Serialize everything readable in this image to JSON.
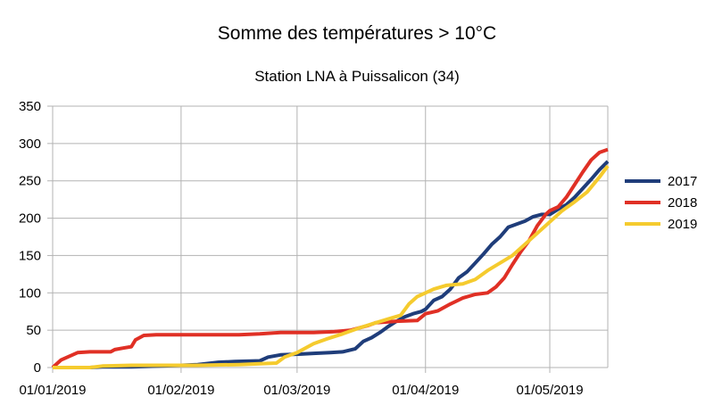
{
  "chart_data": {
    "type": "line",
    "title": "Somme des températures > 10°C",
    "subtitle": "Station LNA à Puissalicon (34)",
    "xlabel": "",
    "ylabel": "",
    "xlim": [
      "2019-01-01",
      "2019-05-15"
    ],
    "ylim": [
      0,
      350
    ],
    "y_ticks": [
      "0",
      "50",
      "100",
      "150",
      "200",
      "250",
      "300",
      "350"
    ],
    "x_ticks": [
      {
        "date": "2019-01-01",
        "label": "01/01/2019"
      },
      {
        "date": "2019-02-01",
        "label": "01/02/2019"
      },
      {
        "date": "2019-03-01",
        "label": "01/03/2019"
      },
      {
        "date": "2019-04-01",
        "label": "01/04/2019"
      },
      {
        "date": "2019-05-01",
        "label": "01/05/2019"
      }
    ],
    "grid": {
      "horizontal": true,
      "vertical": true
    },
    "legend_position": "right",
    "series": [
      {
        "name": "2017",
        "color": "#1f3d7a",
        "points": [
          [
            "2019-01-01",
            0
          ],
          [
            "2019-01-05",
            0
          ],
          [
            "2019-01-10",
            0
          ],
          [
            "2019-01-13",
            1
          ],
          [
            "2019-01-20",
            1
          ],
          [
            "2019-01-27",
            2
          ],
          [
            "2019-02-01",
            3
          ],
          [
            "2019-02-05",
            4
          ],
          [
            "2019-02-10",
            7
          ],
          [
            "2019-02-14",
            8
          ],
          [
            "2019-02-20",
            9
          ],
          [
            "2019-02-22",
            14
          ],
          [
            "2019-02-25",
            17
          ],
          [
            "2019-03-02",
            18
          ],
          [
            "2019-03-05",
            19
          ],
          [
            "2019-03-09",
            20
          ],
          [
            "2019-03-12",
            21
          ],
          [
            "2019-03-15",
            25
          ],
          [
            "2019-03-17",
            35
          ],
          [
            "2019-03-19",
            40
          ],
          [
            "2019-03-21",
            47
          ],
          [
            "2019-03-23",
            55
          ],
          [
            "2019-03-25",
            62
          ],
          [
            "2019-03-27",
            68
          ],
          [
            "2019-03-29",
            72
          ],
          [
            "2019-03-31",
            75
          ],
          [
            "2019-04-01",
            78
          ],
          [
            "2019-04-03",
            90
          ],
          [
            "2019-04-05",
            95
          ],
          [
            "2019-04-07",
            105
          ],
          [
            "2019-04-09",
            120
          ],
          [
            "2019-04-11",
            128
          ],
          [
            "2019-04-13",
            140
          ],
          [
            "2019-04-15",
            152
          ],
          [
            "2019-04-17",
            165
          ],
          [
            "2019-04-19",
            175
          ],
          [
            "2019-04-21",
            188
          ],
          [
            "2019-04-23",
            192
          ],
          [
            "2019-04-25",
            196
          ],
          [
            "2019-04-27",
            202
          ],
          [
            "2019-04-29",
            205
          ],
          [
            "2019-05-01",
            205
          ],
          [
            "2019-05-03",
            212
          ],
          [
            "2019-05-05",
            218
          ],
          [
            "2019-05-07",
            228
          ],
          [
            "2019-05-09",
            240
          ],
          [
            "2019-05-11",
            252
          ],
          [
            "2019-05-13",
            265
          ],
          [
            "2019-05-15",
            276
          ]
        ]
      },
      {
        "name": "2018",
        "color": "#e03025",
        "points": [
          [
            "2019-01-01",
            0
          ],
          [
            "2019-01-03",
            10
          ],
          [
            "2019-01-05",
            15
          ],
          [
            "2019-01-07",
            20
          ],
          [
            "2019-01-10",
            21
          ],
          [
            "2019-01-15",
            21
          ],
          [
            "2019-01-16",
            24
          ],
          [
            "2019-01-18",
            26
          ],
          [
            "2019-01-20",
            28
          ],
          [
            "2019-01-21",
            37
          ],
          [
            "2019-01-23",
            43
          ],
          [
            "2019-01-26",
            44
          ],
          [
            "2019-02-05",
            44
          ],
          [
            "2019-02-15",
            44
          ],
          [
            "2019-02-20",
            45
          ],
          [
            "2019-02-25",
            47
          ],
          [
            "2019-03-05",
            47
          ],
          [
            "2019-03-10",
            48
          ],
          [
            "2019-03-14",
            50
          ],
          [
            "2019-03-18",
            56
          ],
          [
            "2019-03-20",
            60
          ],
          [
            "2019-03-25",
            62
          ],
          [
            "2019-03-30",
            63
          ],
          [
            "2019-04-01",
            72
          ],
          [
            "2019-04-04",
            76
          ],
          [
            "2019-04-07",
            85
          ],
          [
            "2019-04-10",
            93
          ],
          [
            "2019-04-13",
            98
          ],
          [
            "2019-04-16",
            100
          ],
          [
            "2019-04-18",
            108
          ],
          [
            "2019-04-20",
            120
          ],
          [
            "2019-04-22",
            138
          ],
          [
            "2019-04-24",
            155
          ],
          [
            "2019-04-26",
            170
          ],
          [
            "2019-04-28",
            190
          ],
          [
            "2019-04-30",
            205
          ],
          [
            "2019-05-01",
            210
          ],
          [
            "2019-05-03",
            215
          ],
          [
            "2019-05-05",
            228
          ],
          [
            "2019-05-07",
            245
          ],
          [
            "2019-05-09",
            262
          ],
          [
            "2019-05-11",
            278
          ],
          [
            "2019-05-13",
            288
          ],
          [
            "2019-05-15",
            292
          ]
        ]
      },
      {
        "name": "2019",
        "color": "#f5cb2e",
        "points": [
          [
            "2019-01-01",
            0
          ],
          [
            "2019-01-10",
            0
          ],
          [
            "2019-01-13",
            2
          ],
          [
            "2019-01-20",
            3
          ],
          [
            "2019-01-27",
            3
          ],
          [
            "2019-02-05",
            3
          ],
          [
            "2019-02-15",
            4
          ],
          [
            "2019-02-20",
            5
          ],
          [
            "2019-02-24",
            6
          ],
          [
            "2019-02-26",
            14
          ],
          [
            "2019-03-01",
            20
          ],
          [
            "2019-03-05",
            32
          ],
          [
            "2019-03-08",
            38
          ],
          [
            "2019-03-12",
            45
          ],
          [
            "2019-03-16",
            53
          ],
          [
            "2019-03-20",
            60
          ],
          [
            "2019-03-23",
            65
          ],
          [
            "2019-03-26",
            70
          ],
          [
            "2019-03-28",
            85
          ],
          [
            "2019-03-30",
            95
          ],
          [
            "2019-04-01",
            100
          ],
          [
            "2019-04-03",
            105
          ],
          [
            "2019-04-06",
            110
          ],
          [
            "2019-04-10",
            112
          ],
          [
            "2019-04-13",
            118
          ],
          [
            "2019-04-16",
            130
          ],
          [
            "2019-04-19",
            140
          ],
          [
            "2019-04-22",
            150
          ],
          [
            "2019-04-25",
            165
          ],
          [
            "2019-04-28",
            180
          ],
          [
            "2019-05-01",
            195
          ],
          [
            "2019-05-04",
            210
          ],
          [
            "2019-05-07",
            222
          ],
          [
            "2019-05-10",
            235
          ],
          [
            "2019-05-13",
            255
          ],
          [
            "2019-05-15",
            270
          ]
        ]
      }
    ]
  }
}
